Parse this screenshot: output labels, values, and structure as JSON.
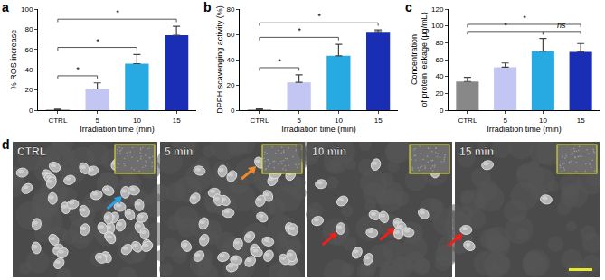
{
  "chart_data": [
    {
      "panel": "a",
      "type": "bar",
      "categories": [
        "CTRL",
        "5",
        "10",
        "15"
      ],
      "values": [
        0.5,
        21,
        46,
        74
      ],
      "errors": [
        0.5,
        6,
        9,
        9
      ],
      "colors": [
        "#888888",
        "#c3c6f2",
        "#27a9e1",
        "#1a2db5"
      ],
      "x_label": "Irradiation time (min)",
      "y_label": [
        "% ROS increase"
      ],
      "ylim": [
        0,
        100
      ],
      "yticks": [
        0,
        20,
        40,
        60,
        80,
        100
      ],
      "significance": [
        {
          "from": "CTRL",
          "to": "5",
          "label": "*"
        },
        {
          "from": "CTRL",
          "to": "10",
          "label": "*"
        },
        {
          "from": "CTRL",
          "to": "15",
          "label": "*"
        }
      ]
    },
    {
      "panel": "b",
      "type": "bar",
      "categories": [
        "CTRL",
        "5",
        "10",
        "15"
      ],
      "values": [
        0.5,
        22,
        43,
        62
      ],
      "errors": [
        0.5,
        6,
        9,
        1.5
      ],
      "colors": [
        "#888888",
        "#c3c6f2",
        "#27a9e1",
        "#1a2db5"
      ],
      "x_label": "Irradiation time (min)",
      "y_label": [
        "DPPH scavenging activity (%)"
      ],
      "ylim": [
        0,
        80
      ],
      "yticks": [
        0,
        20,
        40,
        60,
        80
      ],
      "significance": [
        {
          "from": "CTRL",
          "to": "5",
          "label": "*"
        },
        {
          "from": "CTRL",
          "to": "10",
          "label": "*"
        },
        {
          "from": "CTRL",
          "to": "15",
          "label": "*"
        }
      ]
    },
    {
      "panel": "c",
      "type": "bar",
      "categories": [
        "CTRL",
        "5",
        "10",
        "15"
      ],
      "values": [
        34,
        51,
        70,
        69
      ],
      "errors": [
        5,
        5,
        15,
        10
      ],
      "colors": [
        "#888888",
        "#c3c6f2",
        "#27a9e1",
        "#1a2db5"
      ],
      "x_label": "Irradiation time (min)",
      "y_label": [
        "Concentration",
        "of protein leakage (μg/mL)"
      ],
      "ylim": [
        0,
        120
      ],
      "yticks": [
        0,
        20,
        40,
        60,
        80,
        100,
        120
      ],
      "significance": [
        {
          "from": "CTRL",
          "to": "10",
          "label": "*"
        },
        {
          "from": "10",
          "to": "15",
          "label": "ns"
        },
        {
          "from": "CTRL",
          "to": "15",
          "label": "*"
        }
      ]
    }
  ],
  "sem_images": {
    "panel": "d",
    "labels": [
      "CTRL",
      "5 min",
      "10 min",
      "15 min"
    ]
  }
}
